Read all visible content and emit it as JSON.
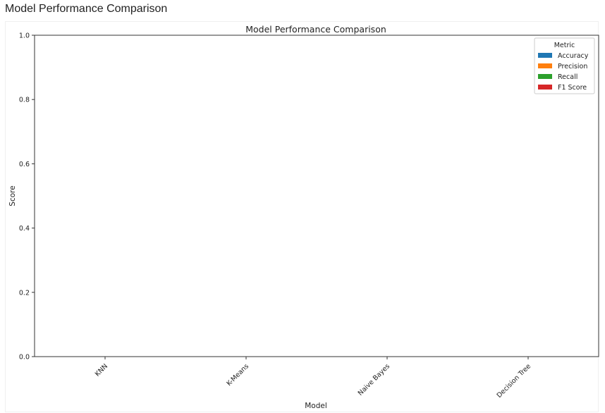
{
  "page": {
    "header_title": "Model Performance Comparison"
  },
  "chart_data": {
    "type": "bar",
    "title": "Model Performance Comparison",
    "xlabel": "Model",
    "ylabel": "Score",
    "categories": [
      "KNN",
      "K-Means",
      "Naive Bayes",
      "Decision Tree"
    ],
    "ylim": [
      0,
      1.0
    ],
    "yticks": [
      "0.0",
      "0.2",
      "0.4",
      "0.6",
      "0.8",
      "1.0"
    ],
    "legend": {
      "title": "Metric",
      "placement": "top-right"
    },
    "series": [
      {
        "name": "Accuracy",
        "color": "#1f77b4",
        "values": [
          0,
          0,
          0,
          0
        ]
      },
      {
        "name": "Precision",
        "color": "#ff7f0e",
        "values": [
          0,
          0,
          0,
          0
        ]
      },
      {
        "name": "Recall",
        "color": "#2ca02c",
        "values": [
          0,
          0,
          0,
          0
        ]
      },
      {
        "name": "F1 Score",
        "color": "#d62728",
        "values": [
          0,
          0,
          0,
          0
        ]
      }
    ]
  }
}
